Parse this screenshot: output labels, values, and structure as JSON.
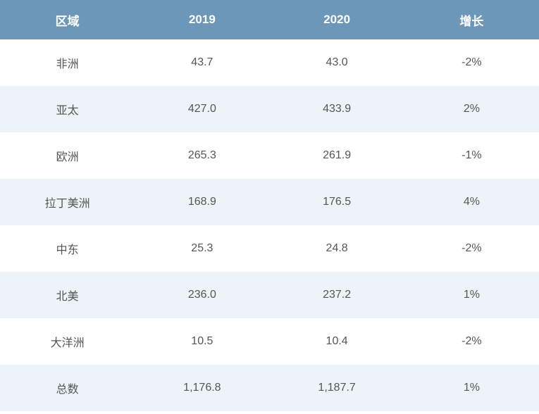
{
  "table": {
    "header_bg": "#6d97b9",
    "header_color": "#ffffff",
    "row_odd_bg": "#ffffff",
    "row_even_bg": "#ecf4fa",
    "text_color": "#555555",
    "columns": [
      "区域",
      "2019",
      "2020",
      "增长"
    ],
    "rows": [
      [
        "非洲",
        "43.7",
        "43.0",
        "-2%"
      ],
      [
        "亚太",
        "427.0",
        "433.9",
        "2%"
      ],
      [
        "欧洲",
        "265.3",
        "261.9",
        "-1%"
      ],
      [
        "拉丁美洲",
        "168.9",
        "176.5",
        "4%"
      ],
      [
        "中东",
        "25.3",
        "24.8",
        "-2%"
      ],
      [
        "北美",
        "236.0",
        "237.2",
        "1%"
      ],
      [
        "大洋洲",
        "10.5",
        "10.4",
        "-2%"
      ],
      [
        "总数",
        "1,176.8",
        "1,187.7",
        "1%"
      ]
    ]
  }
}
